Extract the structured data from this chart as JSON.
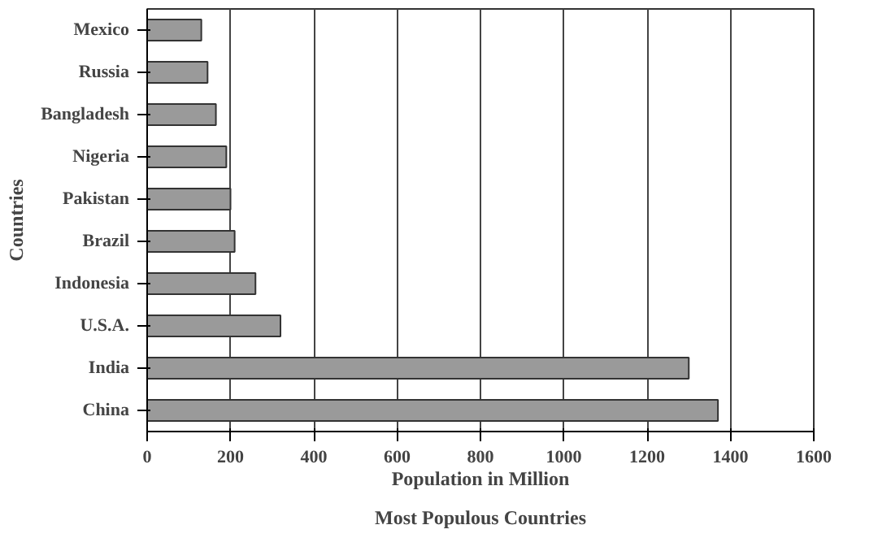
{
  "chart_data": {
    "type": "bar",
    "orientation": "horizontal",
    "title": "Most Populous Countries",
    "xlabel": "Population in Million",
    "ylabel": "Countries",
    "categories": [
      "Mexico",
      "Russia",
      "Bangladesh",
      "Nigeria",
      "Pakistan",
      "Brazil",
      "Indonesia",
      "U.S.A.",
      "India",
      "China"
    ],
    "values": [
      130,
      145,
      165,
      190,
      200,
      210,
      260,
      320,
      1300,
      1370
    ],
    "color": "#9a9a9a",
    "xlim": [
      0,
      1600
    ],
    "xticks": [
      0,
      200,
      400,
      600,
      800,
      1000,
      1200,
      1400,
      1600
    ],
    "grid": "x"
  }
}
